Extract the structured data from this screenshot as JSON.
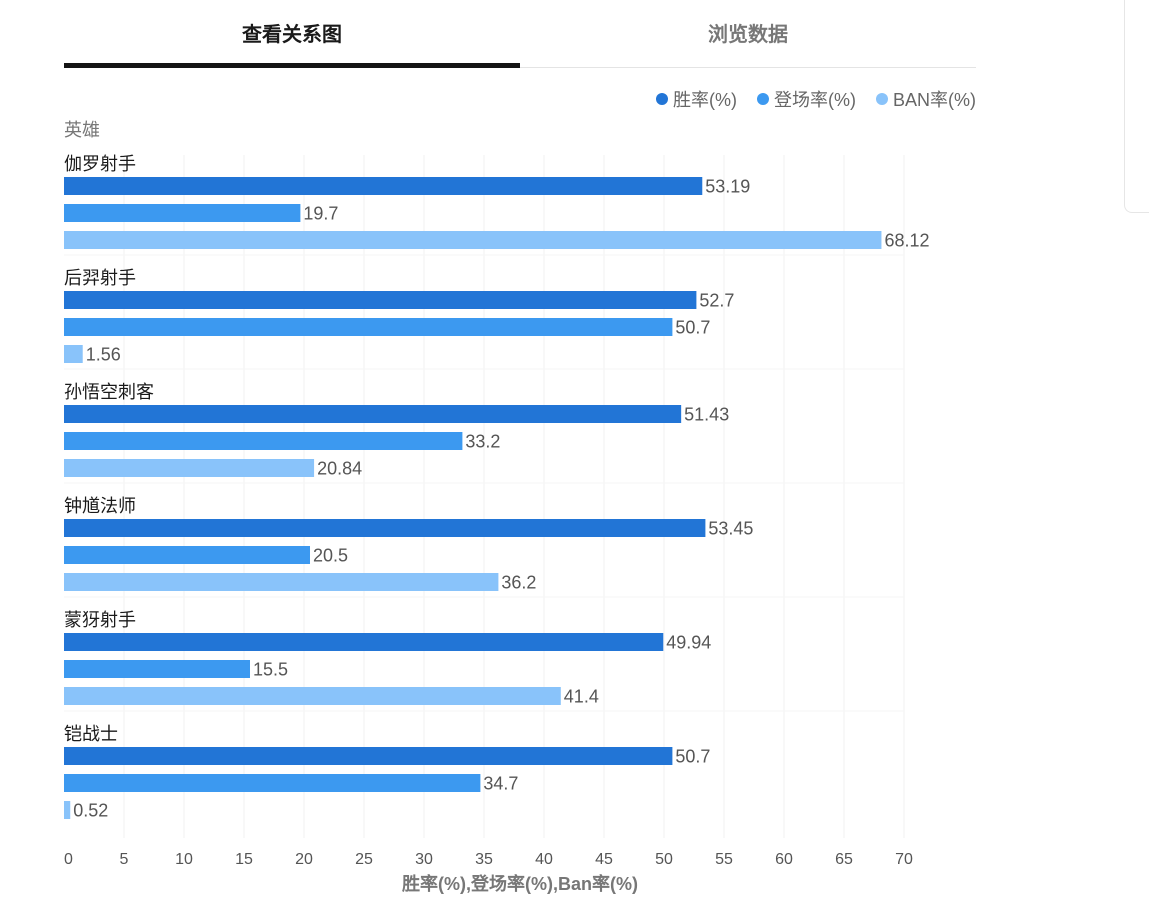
{
  "tabs": [
    {
      "label": "查看关系图",
      "active": true
    },
    {
      "label": "浏览数据",
      "active": false
    }
  ],
  "chart_data": {
    "type": "bar",
    "orientation": "horizontal",
    "categories": [
      "伽罗射手",
      "后羿射手",
      "孙悟空刺客",
      "钟馗法师",
      "蒙犽射手",
      "铠战士"
    ],
    "series": [
      {
        "name": "胜率(%)",
        "color": "#2275d6",
        "values": [
          53.19,
          52.7,
          51.43,
          53.45,
          49.94,
          50.7
        ]
      },
      {
        "name": "登场率(%)",
        "color": "#3c99f0",
        "values": [
          19.7,
          50.7,
          33.2,
          20.5,
          15.5,
          34.7
        ]
      },
      {
        "name": "BAN率(%)",
        "color": "#89c3fa",
        "values": [
          68.12,
          1.56,
          20.84,
          36.2,
          41.4,
          0.52
        ]
      }
    ],
    "xlim": [
      0,
      70
    ],
    "xticks": [
      0,
      5,
      10,
      15,
      20,
      25,
      30,
      35,
      40,
      45,
      50,
      55,
      60,
      65,
      70
    ],
    "xlabel": "胜率(%),登场率(%),Ban率(%)",
    "ylabel": "英雄",
    "grid": true,
    "legend_position": "top-right",
    "data_labels": true
  }
}
